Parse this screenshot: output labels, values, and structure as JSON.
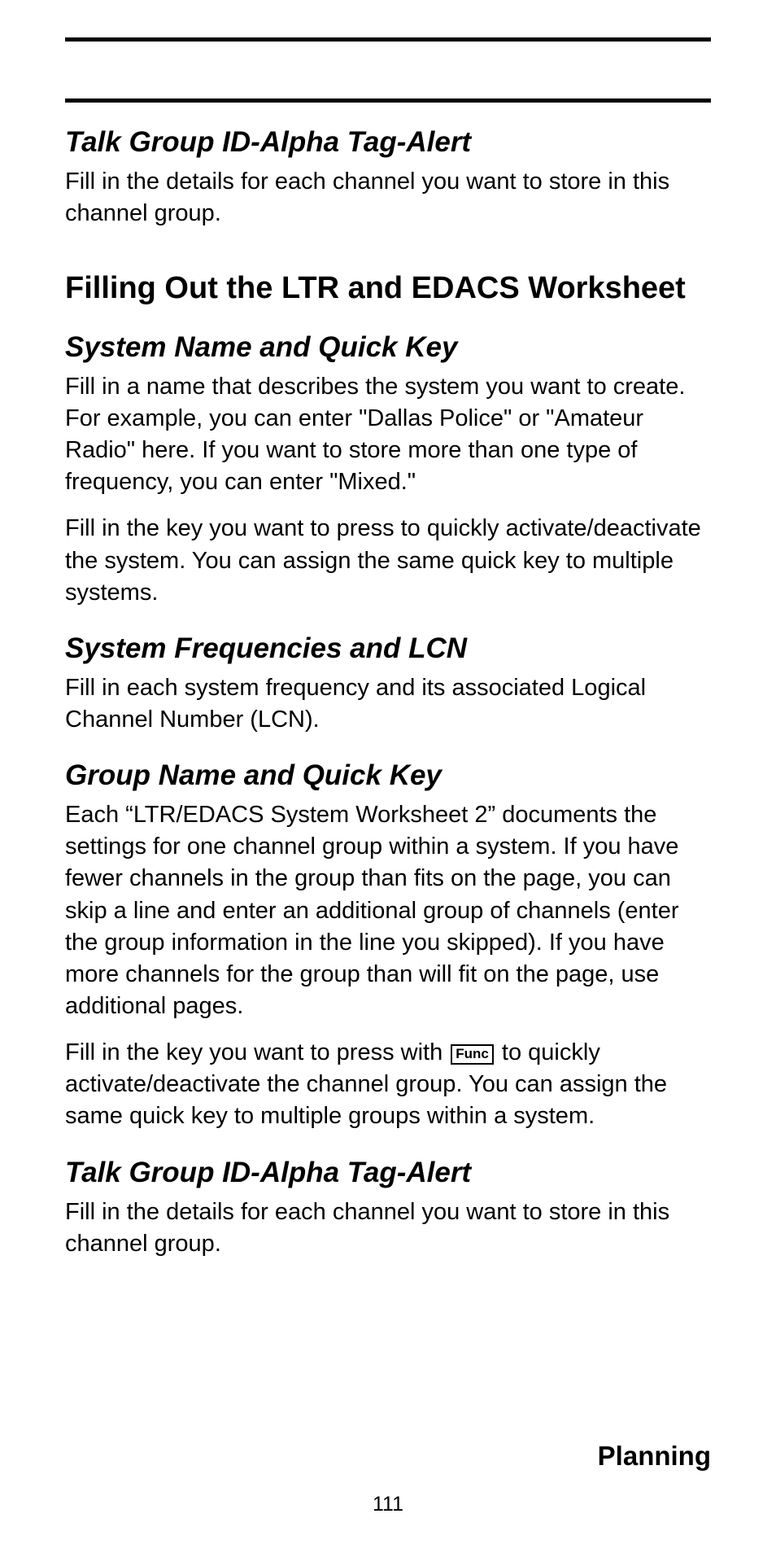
{
  "section1": {
    "heading": "Talk Group ID-Alpha Tag-Alert",
    "para1": "Fill in the details for each channel you want to store in this channel group."
  },
  "mainHeading": "Filling Out the LTR and EDACS Worksheet",
  "systemName": {
    "heading": "System Name and Quick Key",
    "para1": "Fill in a name that describes the system you want to create. For example, you can enter \"Dallas Police\" or \"Amateur Radio\" here. If you want to store more than one type of frequency, you can enter \"Mixed.\"",
    "para2": "Fill in the key you want to press to quickly activate/deactivate the system. You can assign the same quick key to multiple systems."
  },
  "sysFreq": {
    "heading": "System Frequencies and LCN",
    "para1": "Fill in each system frequency and its associated Logical Channel Number (LCN)."
  },
  "groupName": {
    "heading": "Group Name and Quick Key",
    "para1": "Each “LTR/EDACS System Worksheet 2” documents the settings for one channel group within a system. If you have fewer channels in the group than fits on the page, you can skip a line and enter an additional group of channels (enter the group information in the line you skipped). If you have more channels for the group than will fit on the page, use additional pages.",
    "para2_pre": "Fill in the key you want to press with ",
    "para2_key": "Func",
    "para2_post": " to quickly activate/deactivate the channel group. You can assign the same quick key to multiple groups within a system."
  },
  "section2": {
    "heading": "Talk Group ID-Alpha Tag-Alert",
    "para1": "Fill in the details for each channel you want to store in this channel group."
  },
  "footer": {
    "label": "Planning",
    "pageNumber": "111"
  }
}
